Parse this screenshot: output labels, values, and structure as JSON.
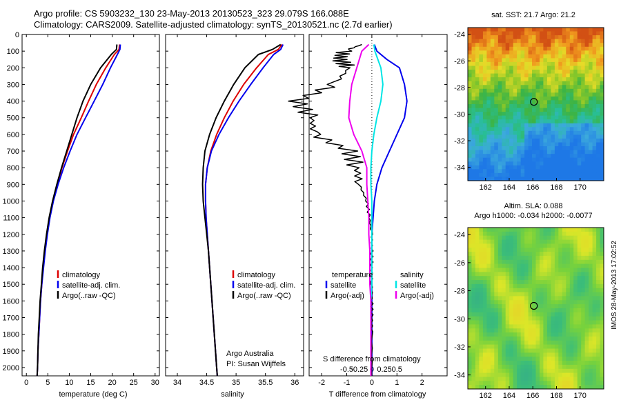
{
  "titles": {
    "line1": "Argo profile: CS 5903232_130 23-May-2013 20130523_323 29.079S 166.088E",
    "line2": "Climatology: CARS2009. Satellite-adjusted climatology: synTS_20130521.nc (2.7d earlier)"
  },
  "colors": {
    "climatology": "#dd0000",
    "satellite": "#0000ee",
    "argo": "#000000",
    "sat_salinity": "#00e5e5",
    "argo_salinity": "#ee00ee",
    "dotted": "#000000"
  },
  "panels": {
    "temperature": {
      "xlabel": "temperature (deg C)",
      "legend": [
        "climatology",
        "satellite-adj. clim.",
        "Argo(..raw -QC)"
      ]
    },
    "salinity": {
      "xlabel": "salinity",
      "legend": [
        "climatology",
        "satellite-adj. clim.",
        "Argo(..raw -QC)"
      ],
      "credit1": "Argo Australia",
      "credit2": "PI: Susan Wijffels"
    },
    "difference": {
      "xlabel": "T difference from climatology",
      "top_label": "S difference from climatology",
      "legend_head_t": "temperature",
      "legend_head_s": "salinity",
      "legend_t": [
        "satellite",
        "Argo(-adj)"
      ],
      "legend_s": [
        "satellite",
        "Argo(-adj)"
      ]
    },
    "sst_map": {
      "title": "sat. SST: 21.7 Argo: 21.2"
    },
    "sla_map": {
      "title1": "Altim. SLA: 0.088",
      "title2": "Argo h1000: -0.034 h2000: -0.0077"
    }
  },
  "footer": {
    "stamp": "IMOS 28-May-2013 17:02:52"
  },
  "chart_data": [
    {
      "type": "line",
      "name": "temperature profile",
      "xlim": [
        -1,
        31
      ],
      "ylim": [
        2050,
        0
      ],
      "xticks": [
        "0",
        "5",
        "10",
        "15",
        "20",
        "25",
        "30"
      ],
      "xtick_values": [
        0,
        5,
        10,
        15,
        20,
        25,
        30
      ],
      "ytick_values": [
        0,
        100,
        200,
        300,
        400,
        500,
        600,
        700,
        800,
        900,
        1000,
        1100,
        1200,
        1300,
        1400,
        1500,
        1600,
        1700,
        1800,
        1900,
        2000
      ],
      "series": [
        {
          "name": "climatology",
          "x": [
            21.7,
            21.6,
            20.5,
            18.5,
            16.3,
            14.5,
            12.8,
            11.0,
            9.6,
            8.3,
            7.2,
            6.2,
            5.4,
            4.8,
            4.3,
            3.9,
            3.6,
            3.3,
            3.1,
            2.9,
            2.7,
            2.6,
            2.5
          ],
          "y": [
            60,
            90,
            120,
            200,
            300,
            400,
            500,
            600,
            700,
            800,
            900,
            1000,
            1100,
            1200,
            1300,
            1400,
            1500,
            1600,
            1700,
            1800,
            1900,
            2000,
            2050
          ]
        },
        {
          "name": "satellite-adj. clim.",
          "x": [
            21.9,
            21.8,
            21.2,
            19.6,
            17.8,
            15.8,
            13.8,
            11.8,
            10.2,
            8.7,
            7.4,
            6.3,
            5.5,
            4.9,
            4.4,
            4.0,
            3.6,
            3.3,
            3.1,
            2.9,
            2.7,
            2.6,
            2.5
          ],
          "y": [
            60,
            90,
            120,
            200,
            300,
            400,
            500,
            600,
            700,
            800,
            900,
            1000,
            1100,
            1200,
            1300,
            1400,
            1500,
            1600,
            1700,
            1800,
            1900,
            2000,
            2050
          ]
        },
        {
          "name": "Argo(..raw -QC)",
          "x": [
            21.1,
            21.0,
            19.8,
            17.3,
            15.0,
            13.2,
            11.8,
            10.6,
            9.4,
            8.2,
            7.1,
            6.1,
            5.3,
            4.7,
            4.2,
            3.8,
            3.5,
            3.2,
            3.0,
            2.8,
            2.7,
            2.6,
            2.5
          ],
          "y": [
            60,
            90,
            120,
            200,
            300,
            400,
            500,
            600,
            700,
            800,
            900,
            1000,
            1100,
            1200,
            1300,
            1400,
            1500,
            1600,
            1700,
            1800,
            1900,
            2000,
            2050
          ]
        }
      ]
    },
    {
      "type": "line",
      "name": "salinity profile",
      "xlim": [
        33.8,
        36.15
      ],
      "ylim": [
        2050,
        0
      ],
      "xticks": [
        "34",
        "34.5",
        "35",
        "35.5",
        "36"
      ],
      "xtick_values": [
        34,
        34.5,
        35,
        35.5,
        36
      ],
      "series": [
        {
          "name": "climatology",
          "x": [
            35.78,
            35.72,
            35.55,
            35.35,
            35.13,
            34.95,
            34.8,
            34.67,
            34.57,
            34.51,
            34.48,
            34.48,
            34.49,
            34.51,
            34.53,
            34.55,
            34.57,
            34.59,
            34.61,
            34.63,
            34.65,
            34.67,
            34.68
          ],
          "y": [
            60,
            90,
            120,
            200,
            300,
            400,
            500,
            600,
            700,
            800,
            900,
            1000,
            1100,
            1200,
            1300,
            1400,
            1500,
            1600,
            1700,
            1800,
            1900,
            2000,
            2050
          ]
        },
        {
          "name": "satellite-adj. clim.",
          "x": [
            35.8,
            35.76,
            35.64,
            35.46,
            35.25,
            35.05,
            34.87,
            34.71,
            34.58,
            34.51,
            34.48,
            34.48,
            34.49,
            34.51,
            34.53,
            34.55,
            34.57,
            34.59,
            34.61,
            34.63,
            34.65,
            34.67,
            34.68
          ],
          "y": [
            60,
            90,
            120,
            200,
            300,
            400,
            500,
            600,
            700,
            800,
            900,
            1000,
            1100,
            1200,
            1300,
            1400,
            1500,
            1600,
            1700,
            1800,
            1900,
            2000,
            2050
          ]
        },
        {
          "name": "Argo(..raw -QC)",
          "x": [
            35.76,
            35.62,
            35.38,
            35.15,
            34.96,
            34.8,
            34.66,
            34.55,
            34.47,
            34.44,
            34.43,
            34.44,
            34.47,
            34.5,
            34.53,
            34.55,
            34.57,
            34.59,
            34.61,
            34.63,
            34.65,
            34.67,
            34.68
          ],
          "y": [
            60,
            90,
            120,
            200,
            300,
            400,
            500,
            600,
            700,
            800,
            900,
            1000,
            1100,
            1200,
            1300,
            1400,
            1500,
            1600,
            1700,
            1800,
            1900,
            2000,
            2050
          ]
        }
      ]
    },
    {
      "type": "line",
      "name": "difference from climatology",
      "xlim": [
        -2.5,
        3
      ],
      "ylim": [
        2050,
        0
      ],
      "xticks": [
        "-2",
        "-1",
        "0",
        "1",
        "2"
      ],
      "xtick_values": [
        -2,
        -1,
        0,
        1,
        2
      ],
      "top_xticks": [
        "-0.5",
        "-0.25",
        "0",
        "0.25",
        "0.5"
      ],
      "series": [
        {
          "name": "satellite (temperature)",
          "x": [
            0.1,
            0.2,
            0.6,
            1.1,
            1.3,
            1.4,
            1.3,
            1.0,
            0.7,
            0.4,
            0.2,
            0.1,
            0.05,
            0,
            0,
            0,
            0,
            0,
            0,
            0,
            0
          ],
          "y": [
            60,
            100,
            150,
            200,
            300,
            400,
            500,
            600,
            700,
            800,
            900,
            1000,
            1100,
            1200,
            1300,
            1400,
            1500,
            1600,
            1700,
            1800,
            2050
          ]
        },
        {
          "name": "Argo(-adj) (temperature)",
          "x": [
            -0.4,
            -1.1,
            -1.3,
            -0.9,
            -1.5,
            -3.0,
            -2.4,
            -2.3,
            -0.9,
            -0.6,
            -0.5,
            -0.2,
            -0.1,
            0,
            0,
            0,
            0,
            0,
            0,
            0,
            0
          ],
          "y": [
            60,
            100,
            150,
            200,
            300,
            400,
            500,
            600,
            700,
            800,
            900,
            1000,
            1100,
            1200,
            1300,
            1400,
            1500,
            1600,
            1700,
            1800,
            2050
          ]
        },
        {
          "name": "satellite (salinity)",
          "x": [
            0.02,
            0.03,
            0.09,
            0.11,
            0.09,
            0.05,
            0.02,
            0.0,
            -0.01,
            -0.01,
            0,
            0,
            0,
            0,
            0,
            0,
            -0.01,
            -0.01,
            -0.01,
            -0.01,
            -0.01
          ],
          "y": [
            60,
            100,
            200,
            300,
            400,
            500,
            600,
            700,
            800,
            900,
            1000,
            1100,
            1200,
            1300,
            1400,
            1500,
            1600,
            1700,
            1800,
            1900,
            2050
          ]
        },
        {
          "name": "Argo(-adj) (salinity)",
          "x": [
            -0.03,
            -0.1,
            -0.15,
            -0.2,
            -0.22,
            -0.23,
            -0.18,
            -0.1,
            -0.05,
            -0.05,
            -0.04,
            -0.03,
            -0.03,
            -0.02,
            -0.02,
            -0.02,
            -0.01,
            -0.01,
            -0.01,
            -0.01,
            -0.01
          ],
          "y": [
            60,
            100,
            200,
            300,
            400,
            500,
            600,
            700,
            800,
            900,
            1000,
            1100,
            1200,
            1300,
            1400,
            1500,
            1600,
            1700,
            1800,
            1900,
            2050
          ]
        }
      ]
    },
    {
      "type": "heatmap",
      "name": "sat. SST map",
      "xticks": [
        "162",
        "164",
        "166",
        "168",
        "170"
      ],
      "yticks": [
        "-24",
        "-26",
        "-28",
        "-30",
        "-32",
        "-34"
      ],
      "xlim": [
        160.5,
        172
      ],
      "ylim": [
        -35,
        -23.5
      ],
      "argo_position": [
        166.088,
        -29.079
      ]
    },
    {
      "type": "heatmap",
      "name": "Altim. SLA map",
      "xticks": [
        "162",
        "164",
        "166",
        "168",
        "170"
      ],
      "yticks": [
        "-24",
        "-26",
        "-28",
        "-30",
        "-32",
        "-34"
      ],
      "xlim": [
        160.5,
        172
      ],
      "ylim": [
        -35,
        -23.5
      ],
      "argo_position": [
        166.088,
        -29.079
      ]
    }
  ]
}
